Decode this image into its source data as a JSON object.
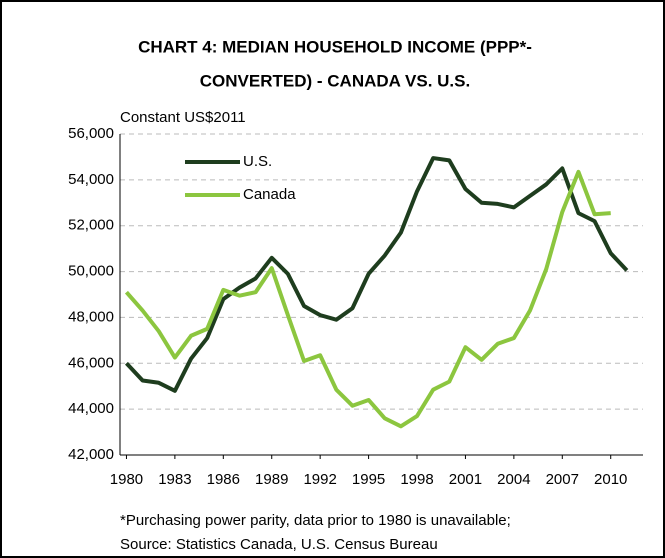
{
  "chart_data": {
    "type": "line",
    "title": [
      "CHART 4: MEDIAN HOUSEHOLD INCOME (PPP*-",
      "CONVERTED) - CANADA VS. U.S."
    ],
    "y_axis_label": "Constant US$2011",
    "note": [
      "*Purchasing power parity, data prior to 1980 is unavailable;",
      "Source: Statistics Canada, U.S. Census Bureau"
    ],
    "x": [
      1980,
      1981,
      1982,
      1983,
      1984,
      1985,
      1986,
      1987,
      1988,
      1989,
      1990,
      1991,
      1992,
      1993,
      1994,
      1995,
      1996,
      1997,
      1998,
      1999,
      2000,
      2001,
      2002,
      2003,
      2004,
      2005,
      2006,
      2007,
      2008,
      2009,
      2010,
      2011
    ],
    "series": [
      {
        "name": "U.S.",
        "color": "#1e3d1e",
        "values": [
          46000,
          45250,
          45150,
          44800,
          46200,
          47100,
          48800,
          49300,
          49700,
          50600,
          49900,
          48500,
          48100,
          47900,
          48400,
          49900,
          50700,
          51700,
          53500,
          54950,
          54850,
          53600,
          53000,
          52950,
          52800,
          53300,
          53800,
          54500,
          52550,
          52200,
          50800,
          50050
        ]
      },
      {
        "name": "Canada",
        "color": "#8cc63f",
        "values": [
          49100,
          48300,
          47400,
          46250,
          47200,
          47500,
          49200,
          48950,
          49100,
          50150,
          48100,
          46100,
          46350,
          44850,
          44150,
          44400,
          43600,
          43250,
          43700,
          44850,
          45200,
          46700,
          46150,
          46850,
          47100,
          48300,
          50100,
          52600,
          54350,
          52500,
          52550,
          null
        ]
      }
    ],
    "xlim": [
      1979.6,
      2012
    ],
    "xticks": [
      1980,
      1983,
      1986,
      1989,
      1992,
      1995,
      1998,
      2001,
      2004,
      2007,
      2010
    ],
    "ylim": [
      42000,
      56000
    ],
    "yticks": [
      {
        "value": 42000,
        "label": "42,000"
      },
      {
        "value": 44000,
        "label": "44,000"
      },
      {
        "value": 46000,
        "label": "46,000"
      },
      {
        "value": 48000,
        "label": "48,000"
      },
      {
        "value": 50000,
        "label": "50,000"
      },
      {
        "value": 52000,
        "label": "52,000"
      },
      {
        "value": 54000,
        "label": "54,000"
      },
      {
        "value": 56000,
        "label": "56,000"
      }
    ],
    "grid": true,
    "legend": "top-left"
  }
}
